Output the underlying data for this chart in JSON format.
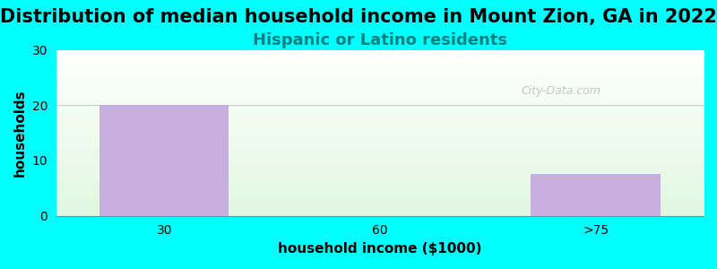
{
  "title": "Distribution of median household income in Mount Zion, GA in 2022",
  "subtitle": "Hispanic or Latino residents",
  "categories": [
    "30",
    "60",
    ">75"
  ],
  "values": [
    20,
    0,
    7.5
  ],
  "bar_color": "#c9aee0",
  "background_color": "#00ffff",
  "plot_bg_gradient_top": "#f0fff0",
  "plot_bg_gradient_bottom": "#ffffff",
  "xlabel": "household income ($1000)",
  "ylabel": "households",
  "ylim": [
    0,
    30
  ],
  "yticks": [
    0,
    10,
    20,
    30
  ],
  "title_fontsize": 15,
  "subtitle_fontsize": 13,
  "subtitle_color": "#008080",
  "axis_label_fontsize": 11,
  "tick_fontsize": 10,
  "watermark": "City-Data.com",
  "bar_width": 0.6
}
